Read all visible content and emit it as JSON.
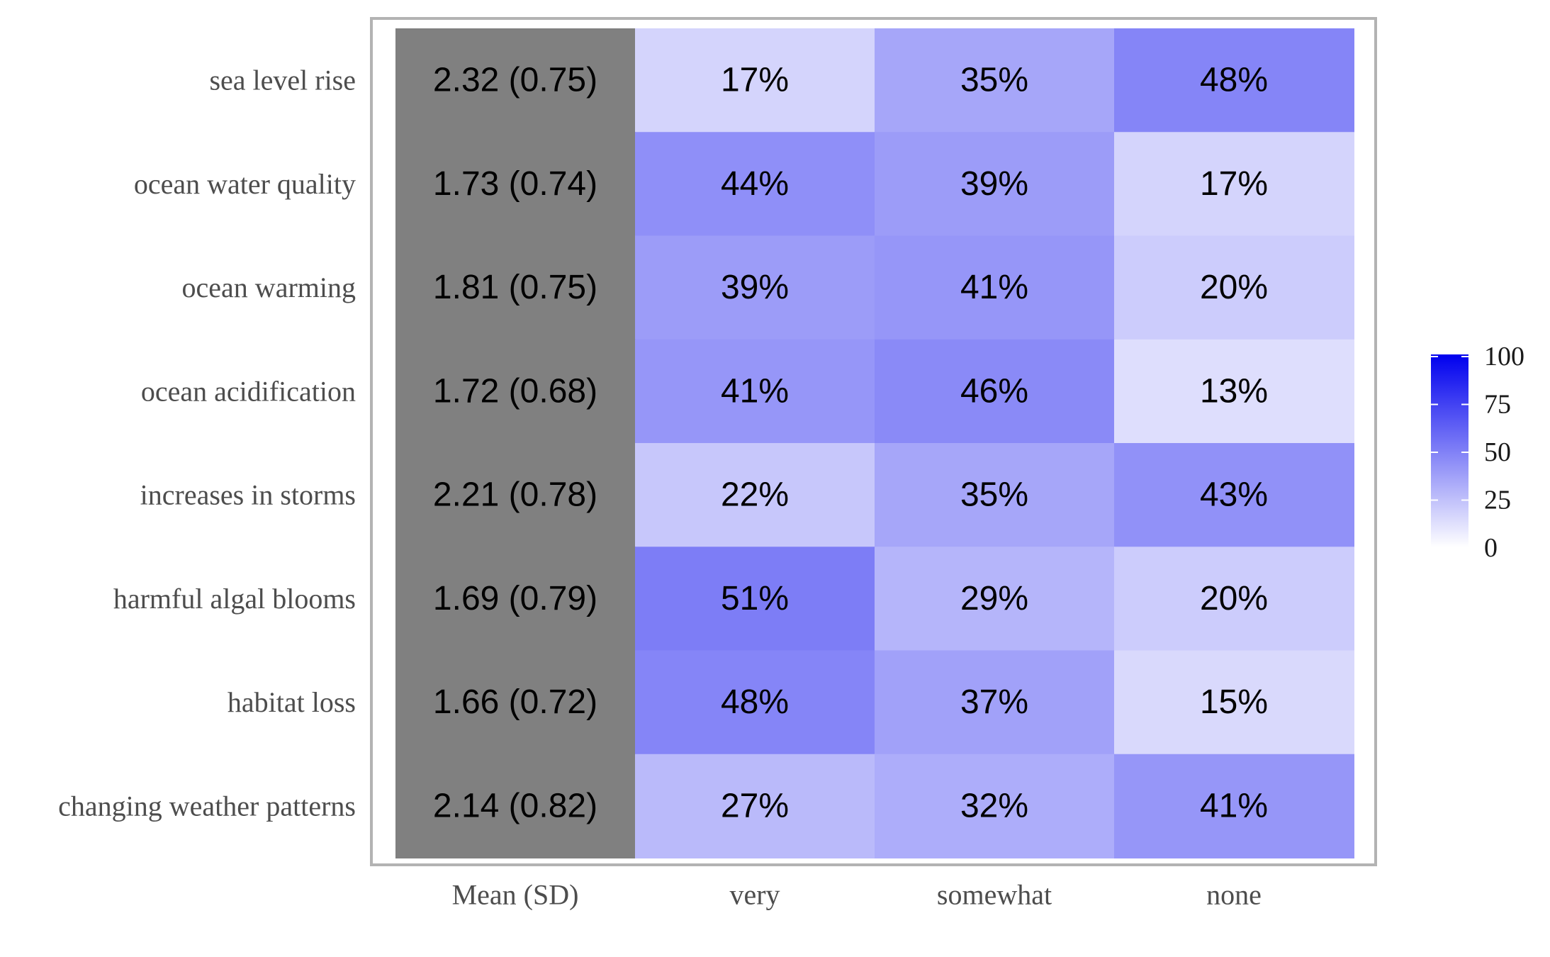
{
  "chart_data": {
    "type": "heatmap",
    "rows": [
      "sea level rise",
      "ocean water quality",
      "ocean warming",
      "ocean acidification",
      "increases in storms",
      "harmful algal blooms",
      "habitat loss",
      "changing weather patterns"
    ],
    "columns": [
      "Mean (SD)",
      "very",
      "somewhat",
      "none"
    ],
    "mean_sd": [
      "2.32 (0.75)",
      "1.73 (0.74)",
      "1.81 (0.75)",
      "1.72 (0.68)",
      "2.21 (0.78)",
      "1.69 (0.79)",
      "1.66 (0.72)",
      "2.14 (0.82)"
    ],
    "percent_columns": [
      "very",
      "somewhat",
      "none"
    ],
    "values": [
      [
        17,
        35,
        48
      ],
      [
        44,
        39,
        17
      ],
      [
        39,
        41,
        20
      ],
      [
        41,
        46,
        13
      ],
      [
        22,
        35,
        43
      ],
      [
        51,
        29,
        20
      ],
      [
        48,
        37,
        15
      ],
      [
        27,
        32,
        41
      ]
    ],
    "value_suffix": "%",
    "legend": {
      "ticks": [
        100,
        75,
        50,
        25,
        0
      ],
      "range": [
        0,
        100
      ],
      "low_color": "#ffffff",
      "high_color": "#0000ee",
      "placement": "right"
    },
    "mean_cell_color": "#808080",
    "grid": false
  }
}
